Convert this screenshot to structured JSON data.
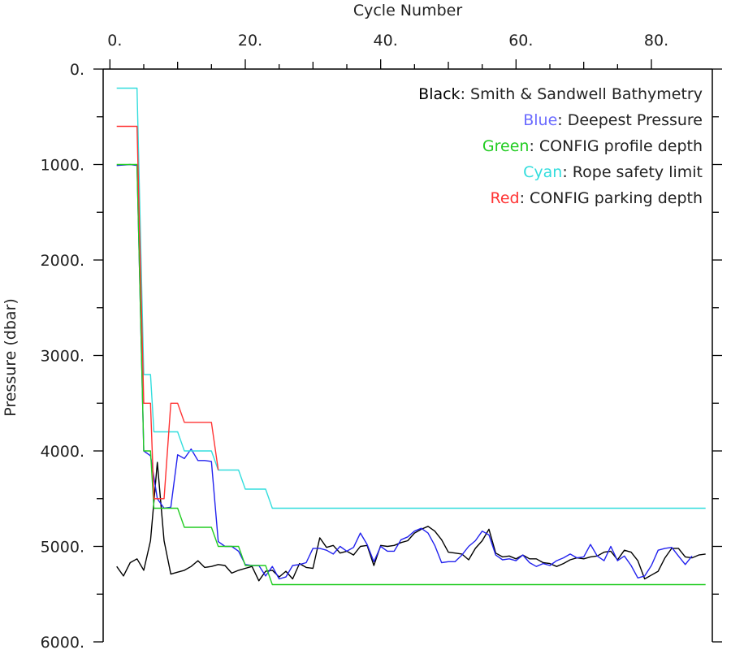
{
  "chart_data": {
    "type": "line",
    "xlabel": "Cycle Number",
    "ylabel": "Pressure (dbar)",
    "xlim": [
      -1,
      89
    ],
    "ylim": [
      0,
      6000
    ],
    "y_inverted": true,
    "x_axis_position": "top",
    "x_tick_labels": [
      {
        "value": 0,
        "label": "0."
      },
      {
        "value": 20,
        "label": "20."
      },
      {
        "value": 40,
        "label": "40."
      },
      {
        "value": 60,
        "label": "60."
      },
      {
        "value": 80,
        "label": "80."
      }
    ],
    "y_tick_labels": [
      {
        "value": 0,
        "label": "0."
      },
      {
        "value": 1000,
        "label": "1000."
      },
      {
        "value": 2000,
        "label": "2000."
      },
      {
        "value": 3000,
        "label": "3000."
      },
      {
        "value": 4000,
        "label": "4000."
      },
      {
        "value": 5000,
        "label": "5000."
      },
      {
        "value": 6000,
        "label": "6000."
      }
    ],
    "grid": false,
    "legend_position": "top-right",
    "legend": [
      {
        "color_word": "Black",
        "text": ": Smith & Sandwell Bathymetry",
        "color": "#000000"
      },
      {
        "color_word": "Blue",
        "text": ": Deepest Pressure",
        "color": "#6a6aff"
      },
      {
        "color_word": "Green",
        "text": ": CONFIG profile depth",
        "color": "#22cc22"
      },
      {
        "color_word": "Cyan",
        "text": ": Rope safety limit",
        "color": "#33dddd"
      },
      {
        "color_word": "Red",
        "text": ": CONFIG parking depth",
        "color": "#ff3333"
      }
    ],
    "series": [
      {
        "name": "Black",
        "color": "#000000",
        "points": [
          [
            1,
            5210
          ],
          [
            2,
            5310
          ],
          [
            3,
            5170
          ],
          [
            4,
            5130
          ],
          [
            5,
            5250
          ],
          [
            6,
            4940
          ],
          [
            7,
            4120
          ],
          [
            8,
            4940
          ],
          [
            9,
            5290
          ],
          [
            10,
            5270
          ],
          [
            11,
            5250
          ],
          [
            12,
            5210
          ],
          [
            13,
            5150
          ],
          [
            14,
            5220
          ],
          [
            15,
            5210
          ],
          [
            16,
            5190
          ],
          [
            17,
            5200
          ],
          [
            18,
            5280
          ],
          [
            19,
            5250
          ],
          [
            20,
            5230
          ],
          [
            21,
            5210
          ],
          [
            22,
            5360
          ],
          [
            23,
            5260
          ],
          [
            24,
            5250
          ],
          [
            25,
            5320
          ],
          [
            26,
            5260
          ],
          [
            27,
            5340
          ],
          [
            28,
            5180
          ],
          [
            29,
            5220
          ],
          [
            30,
            5230
          ],
          [
            31,
            4910
          ],
          [
            32,
            5010
          ],
          [
            33,
            4990
          ],
          [
            34,
            5070
          ],
          [
            35,
            5050
          ],
          [
            36,
            5090
          ],
          [
            37,
            5000
          ],
          [
            38,
            4990
          ],
          [
            39,
            5200
          ],
          [
            40,
            4990
          ],
          [
            41,
            5000
          ],
          [
            42,
            4990
          ],
          [
            43,
            4960
          ],
          [
            44,
            4940
          ],
          [
            45,
            4860
          ],
          [
            46,
            4820
          ],
          [
            47,
            4790
          ],
          [
            48,
            4840
          ],
          [
            49,
            4930
          ],
          [
            50,
            5060
          ],
          [
            51,
            5070
          ],
          [
            52,
            5080
          ],
          [
            53,
            5140
          ],
          [
            54,
            5020
          ],
          [
            55,
            4940
          ],
          [
            56,
            4820
          ],
          [
            57,
            5070
          ],
          [
            58,
            5110
          ],
          [
            59,
            5100
          ],
          [
            60,
            5130
          ],
          [
            61,
            5090
          ],
          [
            62,
            5130
          ],
          [
            63,
            5130
          ],
          [
            64,
            5170
          ],
          [
            65,
            5180
          ],
          [
            66,
            5210
          ],
          [
            67,
            5180
          ],
          [
            68,
            5140
          ],
          [
            69,
            5120
          ],
          [
            70,
            5130
          ],
          [
            71,
            5110
          ],
          [
            72,
            5100
          ],
          [
            73,
            5060
          ],
          [
            74,
            5050
          ],
          [
            75,
            5140
          ],
          [
            76,
            5040
          ],
          [
            77,
            5060
          ],
          [
            78,
            5150
          ],
          [
            79,
            5340
          ],
          [
            80,
            5300
          ],
          [
            81,
            5260
          ],
          [
            82,
            5120
          ],
          [
            83,
            5020
          ],
          [
            84,
            5020
          ],
          [
            85,
            5110
          ],
          [
            86,
            5120
          ],
          [
            87,
            5090
          ],
          [
            88,
            5080
          ]
        ]
      },
      {
        "name": "Blue",
        "color": "#2222ee",
        "points": [
          [
            1,
            1010
          ],
          [
            3,
            1000
          ],
          [
            4,
            1010
          ],
          [
            5,
            4000
          ],
          [
            6,
            4050
          ],
          [
            7,
            4500
          ],
          [
            8,
            4600
          ],
          [
            9,
            4590
          ],
          [
            10,
            4040
          ],
          [
            11,
            4080
          ],
          [
            12,
            3980
          ],
          [
            13,
            4100
          ],
          [
            14,
            4100
          ],
          [
            15,
            4110
          ],
          [
            16,
            4950
          ],
          [
            17,
            5000
          ],
          [
            18,
            5000
          ],
          [
            19,
            5050
          ],
          [
            20,
            5190
          ],
          [
            21,
            5200
          ],
          [
            22,
            5200
          ],
          [
            23,
            5310
          ],
          [
            24,
            5210
          ],
          [
            25,
            5340
          ],
          [
            26,
            5320
          ],
          [
            27,
            5200
          ],
          [
            28,
            5190
          ],
          [
            29,
            5170
          ],
          [
            30,
            5020
          ],
          [
            31,
            5020
          ],
          [
            32,
            5040
          ],
          [
            33,
            5080
          ],
          [
            34,
            5000
          ],
          [
            35,
            5050
          ],
          [
            36,
            5010
          ],
          [
            37,
            4860
          ],
          [
            38,
            4980
          ],
          [
            39,
            5160
          ],
          [
            40,
            5000
          ],
          [
            41,
            5050
          ],
          [
            42,
            5050
          ],
          [
            43,
            4930
          ],
          [
            44,
            4900
          ],
          [
            45,
            4840
          ],
          [
            46,
            4810
          ],
          [
            47,
            4860
          ],
          [
            48,
            4990
          ],
          [
            49,
            5170
          ],
          [
            50,
            5160
          ],
          [
            51,
            5160
          ],
          [
            52,
            5090
          ],
          [
            53,
            5000
          ],
          [
            54,
            4940
          ],
          [
            55,
            4840
          ],
          [
            56,
            4880
          ],
          [
            57,
            5090
          ],
          [
            58,
            5140
          ],
          [
            59,
            5130
          ],
          [
            60,
            5150
          ],
          [
            61,
            5090
          ],
          [
            62,
            5170
          ],
          [
            63,
            5210
          ],
          [
            64,
            5180
          ],
          [
            65,
            5200
          ],
          [
            66,
            5150
          ],
          [
            67,
            5120
          ],
          [
            68,
            5080
          ],
          [
            69,
            5120
          ],
          [
            70,
            5110
          ],
          [
            71,
            4980
          ],
          [
            72,
            5100
          ],
          [
            73,
            5150
          ],
          [
            74,
            5000
          ],
          [
            75,
            5150
          ],
          [
            76,
            5100
          ],
          [
            77,
            5200
          ],
          [
            78,
            5330
          ],
          [
            79,
            5310
          ],
          [
            80,
            5200
          ],
          [
            81,
            5040
          ],
          [
            82,
            5020
          ],
          [
            83,
            5010
          ],
          [
            84,
            5100
          ],
          [
            85,
            5190
          ],
          [
            86,
            5100
          ]
        ]
      },
      {
        "name": "Green",
        "color": "#22cc22",
        "points": [
          [
            1,
            1000
          ],
          [
            2,
            1000
          ],
          [
            3,
            1000
          ],
          [
            4,
            1000
          ],
          [
            5,
            4000
          ],
          [
            6,
            4000
          ],
          [
            6.5,
            4600
          ],
          [
            7,
            4600
          ],
          [
            8,
            4600
          ],
          [
            9,
            4600
          ],
          [
            10,
            4600
          ],
          [
            11,
            4800
          ],
          [
            12,
            4800
          ],
          [
            13,
            4800
          ],
          [
            14,
            4800
          ],
          [
            15,
            4800
          ],
          [
            16,
            5000
          ],
          [
            17,
            5000
          ],
          [
            18,
            5000
          ],
          [
            19,
            5000
          ],
          [
            20,
            5200
          ],
          [
            21,
            5200
          ],
          [
            22,
            5200
          ],
          [
            23,
            5200
          ],
          [
            24,
            5400
          ],
          [
            88,
            5400
          ]
        ]
      },
      {
        "name": "Cyan",
        "color": "#33dddd",
        "points": [
          [
            1,
            200
          ],
          [
            2,
            200
          ],
          [
            3,
            200
          ],
          [
            4,
            200
          ],
          [
            5,
            3200
          ],
          [
            6,
            3200
          ],
          [
            6.5,
            3800
          ],
          [
            7,
            3800
          ],
          [
            8,
            3800
          ],
          [
            9,
            3800
          ],
          [
            10,
            3800
          ],
          [
            11,
            4000
          ],
          [
            12,
            4000
          ],
          [
            13,
            4000
          ],
          [
            14,
            4000
          ],
          [
            15,
            4000
          ],
          [
            16,
            4200
          ],
          [
            17,
            4200
          ],
          [
            18,
            4200
          ],
          [
            19,
            4200
          ],
          [
            20,
            4400
          ],
          [
            21,
            4400
          ],
          [
            22,
            4400
          ],
          [
            23,
            4400
          ],
          [
            24,
            4600
          ],
          [
            88,
            4600
          ]
        ]
      },
      {
        "name": "Red",
        "color": "#ff3333",
        "points": [
          [
            1,
            600
          ],
          [
            2,
            600
          ],
          [
            3,
            600
          ],
          [
            4,
            600
          ],
          [
            5,
            3500
          ],
          [
            6,
            3500
          ],
          [
            6.5,
            4500
          ],
          [
            7,
            4500
          ],
          [
            8,
            4500
          ],
          [
            9,
            3500
          ],
          [
            10,
            3500
          ],
          [
            11,
            3700
          ],
          [
            12,
            3700
          ],
          [
            13,
            3700
          ],
          [
            14,
            3700
          ],
          [
            15,
            3700
          ],
          [
            16,
            4200
          ]
        ]
      }
    ]
  }
}
